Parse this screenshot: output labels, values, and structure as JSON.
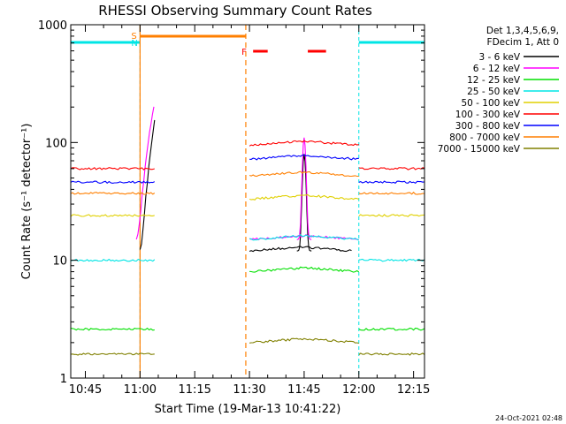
{
  "chart_data": {
    "type": "line",
    "title": "RHESSI Observing Summary Count Rates",
    "xlabel": "Start Time (19-Mar-13 10:41:22)",
    "ylabel": "Count Rate (s⁻¹ detector⁻¹)",
    "ylog": true,
    "ylim": [
      1,
      1000
    ],
    "y_ticks": [
      {
        "value": 1,
        "label": "1"
      },
      {
        "value": 10,
        "label": "10"
      },
      {
        "value": 100,
        "label": "100"
      },
      {
        "value": 1000,
        "label": "1000"
      }
    ],
    "xlim": [
      "10:41",
      "12:18"
    ],
    "x_ticks": [
      "10:45",
      "11:00",
      "11:15",
      "11:30",
      "11:45",
      "12:00",
      "12:15"
    ],
    "footer": "24-Oct-2021 02:48",
    "legend_header": [
      "Det 1,3,4,5,6,9,",
      "FDecim 1, Att 0"
    ],
    "legend_placement": "right",
    "annotations": {
      "saa": {
        "label": "S",
        "periods": [
          [
            "11:00",
            "11:29"
          ]
        ],
        "color": "#ff7f00"
      },
      "night": {
        "label": "N",
        "periods": [
          [
            "10:41",
            "11:00"
          ],
          [
            "12:00",
            "12:18"
          ]
        ],
        "color": "#00e5e5"
      },
      "flare": {
        "label": "F",
        "periods": [
          [
            "11:31",
            "11:35"
          ],
          [
            "11:46",
            "11:51"
          ]
        ],
        "color": "#ff0000"
      }
    },
    "gaps": [
      [
        "11:04",
        "11:30"
      ]
    ],
    "series": [
      {
        "name": "3 - 6 keV",
        "color": "#000000",
        "values": [
          {
            "start": "11:00",
            "end": "11:04",
            "level": 150,
            "note": "rising"
          },
          {
            "start": "11:30",
            "end": "11:58",
            "level": 12
          },
          {
            "start": "11:45",
            "end": "11:46",
            "level": 80,
            "note": "peak"
          }
        ]
      },
      {
        "name": "6 - 12 keV",
        "color": "#ff00ff",
        "values": [
          {
            "start": "10:59",
            "end": "11:04",
            "level": 220,
            "note": "rising"
          },
          {
            "start": "11:30",
            "end": "12:00",
            "level": 15
          },
          {
            "start": "11:45",
            "end": "11:46",
            "level": 110,
            "note": "peak"
          }
        ]
      },
      {
        "name": "12 - 25 keV",
        "color": "#00e000",
        "values": [
          {
            "start": "10:41",
            "end": "11:04",
            "level": 2.6
          },
          {
            "start": "11:30",
            "end": "12:00",
            "level": 8
          },
          {
            "start": "12:00",
            "end": "12:18",
            "level": 2.6
          }
        ]
      },
      {
        "name": "25 - 50 keV",
        "color": "#00e5e5",
        "values": [
          {
            "start": "10:41",
            "end": "11:04",
            "level": 10
          },
          {
            "start": "11:30",
            "end": "12:00",
            "level": 15
          },
          {
            "start": "12:00",
            "end": "12:18",
            "level": 10
          }
        ]
      },
      {
        "name": "50 - 100 keV",
        "color": "#e0d000",
        "values": [
          {
            "start": "10:41",
            "end": "11:04",
            "level": 24
          },
          {
            "start": "11:30",
            "end": "12:00",
            "level": 33
          },
          {
            "start": "12:00",
            "end": "12:18",
            "level": 24
          }
        ]
      },
      {
        "name": "100 - 300 keV",
        "color": "#ff0000",
        "values": [
          {
            "start": "10:41",
            "end": "11:04",
            "level": 60
          },
          {
            "start": "11:30",
            "end": "12:00",
            "level": 95
          },
          {
            "start": "12:00",
            "end": "12:18",
            "level": 60
          }
        ]
      },
      {
        "name": "300 - 800 keV",
        "color": "#0000ff",
        "values": [
          {
            "start": "10:41",
            "end": "11:04",
            "level": 46
          },
          {
            "start": "11:30",
            "end": "12:00",
            "level": 72
          },
          {
            "start": "12:00",
            "end": "12:18",
            "level": 46
          }
        ]
      },
      {
        "name": "800 - 7000 keV",
        "color": "#ff7f00",
        "values": [
          {
            "start": "10:41",
            "end": "11:04",
            "level": 37
          },
          {
            "start": "11:30",
            "end": "12:00",
            "level": 52
          },
          {
            "start": "12:00",
            "end": "12:18",
            "level": 37
          }
        ]
      },
      {
        "name": "7000 - 15000 keV",
        "color": "#808000",
        "values": [
          {
            "start": "10:41",
            "end": "11:04",
            "level": 1.6
          },
          {
            "start": "11:30",
            "end": "12:00",
            "level": 2
          },
          {
            "start": "12:00",
            "end": "12:18",
            "level": 1.6
          }
        ]
      }
    ]
  }
}
